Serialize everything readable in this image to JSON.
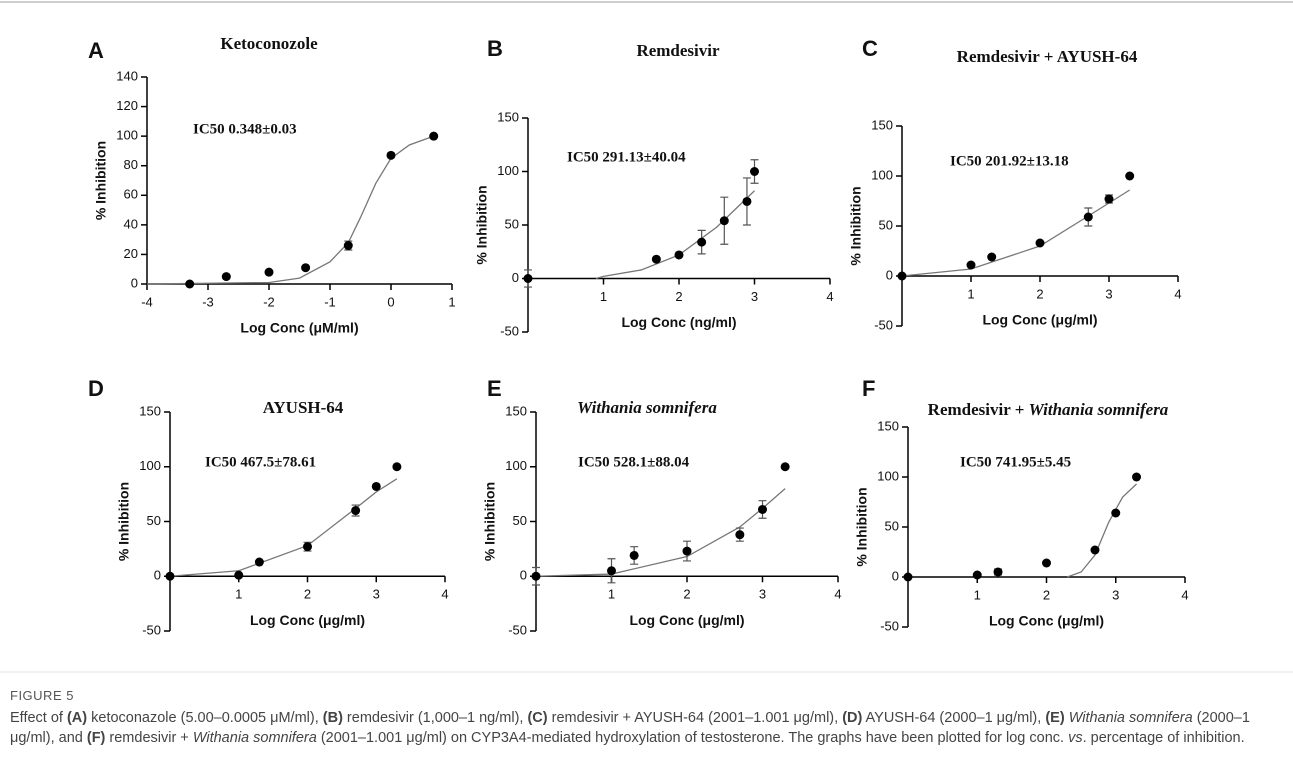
{
  "chart_data": [
    {
      "type": "scatter",
      "label": "A",
      "title": [
        {
          "text": "Ketoconozole",
          "italic": false
        }
      ],
      "annotation": "IC50 0.348±0.03",
      "xlabel": "Log Conc (μM/ml)",
      "ylabel": "% Inhibition",
      "color": "#000000",
      "xlim": [
        -4,
        1
      ],
      "ylim": [
        0,
        140
      ],
      "xticks": [
        -4,
        -3,
        -2,
        -1,
        0,
        1
      ],
      "yticks": [
        0,
        20,
        40,
        60,
        80,
        100,
        120,
        140
      ],
      "x": [
        -3.3,
        -2.7,
        -2,
        -1.4,
        -0.7,
        0,
        0.7
      ],
      "values": [
        0,
        5,
        8,
        11,
        26,
        87,
        100
      ],
      "errors": [
        null,
        null,
        null,
        null,
        3,
        null,
        null
      ],
      "fit": {
        "x": [
          -4,
          -2,
          -1.5,
          -1,
          -0.7,
          -0.5,
          -0.25,
          0,
          0.3,
          0.7
        ],
        "values": [
          0,
          1,
          4,
          15,
          28,
          45,
          68,
          85,
          94,
          100
        ]
      }
    },
    {
      "type": "scatter",
      "label": "B",
      "title": [
        {
          "text": "Remdesivir",
          "italic": false
        }
      ],
      "annotation": "IC50 291.13±40.04",
      "xlabel": "Log Conc (ng/ml)",
      "ylabel": "% Inhibition",
      "color": "#000000",
      "xlim": [
        0,
        4
      ],
      "ylim": [
        -50,
        150
      ],
      "xticks": [
        1,
        2,
        3,
        4
      ],
      "yticks": [
        -50,
        0,
        50,
        100,
        150
      ],
      "x": [
        0,
        1.7,
        2,
        2.3,
        2.6,
        2.9,
        3
      ],
      "values": [
        0,
        18,
        22,
        34,
        54,
        72,
        100
      ],
      "errors": [
        8,
        null,
        null,
        11,
        22,
        22,
        11
      ],
      "fit": {
        "x": [
          0.9,
          1,
          1.5,
          2,
          2.5,
          3
        ],
        "values": [
          0,
          2,
          8,
          22,
          48,
          82
        ]
      }
    },
    {
      "type": "scatter",
      "label": "C",
      "title": [
        {
          "text": "Remdesivir + AYUSH-64",
          "italic": false
        }
      ],
      "annotation": "IC50 201.92±13.18",
      "xlabel": "Log Conc (μg/ml)",
      "ylabel": "% Inhibition",
      "color": "#000000",
      "xlim": [
        0,
        4
      ],
      "ylim": [
        -50,
        150
      ],
      "xticks": [
        1,
        2,
        3,
        4
      ],
      "yticks": [
        -50,
        0,
        50,
        100,
        150
      ],
      "x": [
        0,
        1,
        1.3,
        2,
        2.7,
        3,
        3.3
      ],
      "values": [
        0,
        11,
        19,
        33,
        59,
        77,
        100
      ],
      "errors": [
        null,
        null,
        null,
        null,
        9,
        4,
        null
      ],
      "fit": {
        "x": [
          0,
          1,
          2,
          2.7,
          3,
          3.3
        ],
        "values": [
          0,
          7,
          30,
          60,
          73,
          86
        ]
      }
    },
    {
      "type": "scatter",
      "label": "D",
      "title": [
        {
          "text": "AYUSH-64",
          "italic": false
        }
      ],
      "annotation": "IC50 467.5±78.61",
      "xlabel": "Log Conc (μg/ml)",
      "ylabel": "% Inhibition",
      "color": "#000000",
      "xlim": [
        0,
        4
      ],
      "ylim": [
        -50,
        150
      ],
      "xticks": [
        1,
        2,
        3,
        4
      ],
      "yticks": [
        -50,
        0,
        50,
        100,
        150
      ],
      "x": [
        0,
        1,
        1.3,
        2,
        2.7,
        3,
        3.3
      ],
      "values": [
        0,
        1,
        13,
        27,
        60,
        82,
        100
      ],
      "errors": [
        null,
        null,
        null,
        4,
        5,
        null,
        null
      ],
      "fit": {
        "x": [
          0,
          1,
          2,
          2.7,
          3,
          3.3
        ],
        "values": [
          0,
          5,
          28,
          62,
          77,
          89
        ]
      }
    },
    {
      "type": "scatter",
      "label": "E",
      "title": [
        {
          "text": "Withania somnifera",
          "italic": true
        }
      ],
      "annotation": "IC50 528.1±88.04",
      "xlabel": "Log Conc (μg/ml)",
      "ylabel": "% Inhibition",
      "color": "#000000",
      "xlim": [
        0,
        4
      ],
      "ylim": [
        -50,
        150
      ],
      "xticks": [
        1,
        2,
        3,
        4
      ],
      "yticks": [
        -50,
        0,
        50,
        100,
        150
      ],
      "x": [
        0,
        1,
        1.3,
        2,
        2.7,
        3,
        3.3
      ],
      "values": [
        0,
        5,
        19,
        23,
        38,
        61,
        100
      ],
      "errors": [
        8,
        11,
        8,
        9,
        6,
        8,
        null
      ],
      "fit": {
        "x": [
          0,
          1,
          2,
          2.7,
          3,
          3.3
        ],
        "values": [
          0,
          2,
          18,
          45,
          62,
          80
        ]
      }
    },
    {
      "type": "scatter",
      "label": "F",
      "title": [
        {
          "text": "Remdesivir + ",
          "italic": false
        },
        {
          "text": "Withania somnifera",
          "italic": true
        }
      ],
      "annotation": "IC50 741.95±5.45",
      "xlabel": "Log Conc (μg/ml)",
      "ylabel": "% Inhibition",
      "color": "#000000",
      "xlim": [
        0,
        4
      ],
      "ylim": [
        -50,
        150
      ],
      "xticks": [
        1,
        2,
        3,
        4
      ],
      "yticks": [
        -50,
        0,
        50,
        100,
        150
      ],
      "x": [
        0,
        1,
        1.3,
        2,
        2.7,
        3,
        3.3
      ],
      "values": [
        0,
        2,
        5,
        14,
        27,
        64,
        100
      ],
      "errors": [
        null,
        null,
        3,
        null,
        null,
        null,
        null
      ],
      "fit": {
        "x": [
          2.3,
          2.5,
          2.7,
          2.9,
          3.1,
          3.3
        ],
        "values": [
          0,
          5,
          22,
          55,
          80,
          93
        ]
      }
    }
  ],
  "caption": {
    "label": "FIGURE 5",
    "runs": [
      {
        "text": "Effect of ",
        "style": "normal"
      },
      {
        "text": "(A)",
        "style": "bold"
      },
      {
        "text": " ketoconazole (5.00–0.0005 μM/ml), ",
        "style": "normal"
      },
      {
        "text": "(B)",
        "style": "bold"
      },
      {
        "text": " remdesivir (1,000–1 ng/ml), ",
        "style": "normal"
      },
      {
        "text": "(C)",
        "style": "bold"
      },
      {
        "text": " remdesivir + AYUSH-64 (2001–1.001 μg/ml), ",
        "style": "normal"
      },
      {
        "text": "(D)",
        "style": "bold"
      },
      {
        "text": " AYUSH-64 (2000–1 μg/ml), ",
        "style": "normal"
      },
      {
        "text": "(E)",
        "style": "bold"
      },
      {
        "text": " ",
        "style": "normal"
      },
      {
        "text": "Withania somnifera",
        "style": "italic"
      },
      {
        "text": " (2000–1 μg/ml), and ",
        "style": "normal"
      },
      {
        "text": "(F)",
        "style": "bold"
      },
      {
        "text": " remdesivir + ",
        "style": "normal"
      },
      {
        "text": "Withania somnifera",
        "style": "italic"
      },
      {
        "text": " (2001–1.001 μg/ml) on CYP3A4-mediated hydroxylation of testosterone. The graphs have been plotted for log conc. ",
        "style": "normal"
      },
      {
        "text": "vs",
        "style": "italic"
      },
      {
        "text": ". percentage of inhibition.",
        "style": "normal"
      }
    ]
  }
}
